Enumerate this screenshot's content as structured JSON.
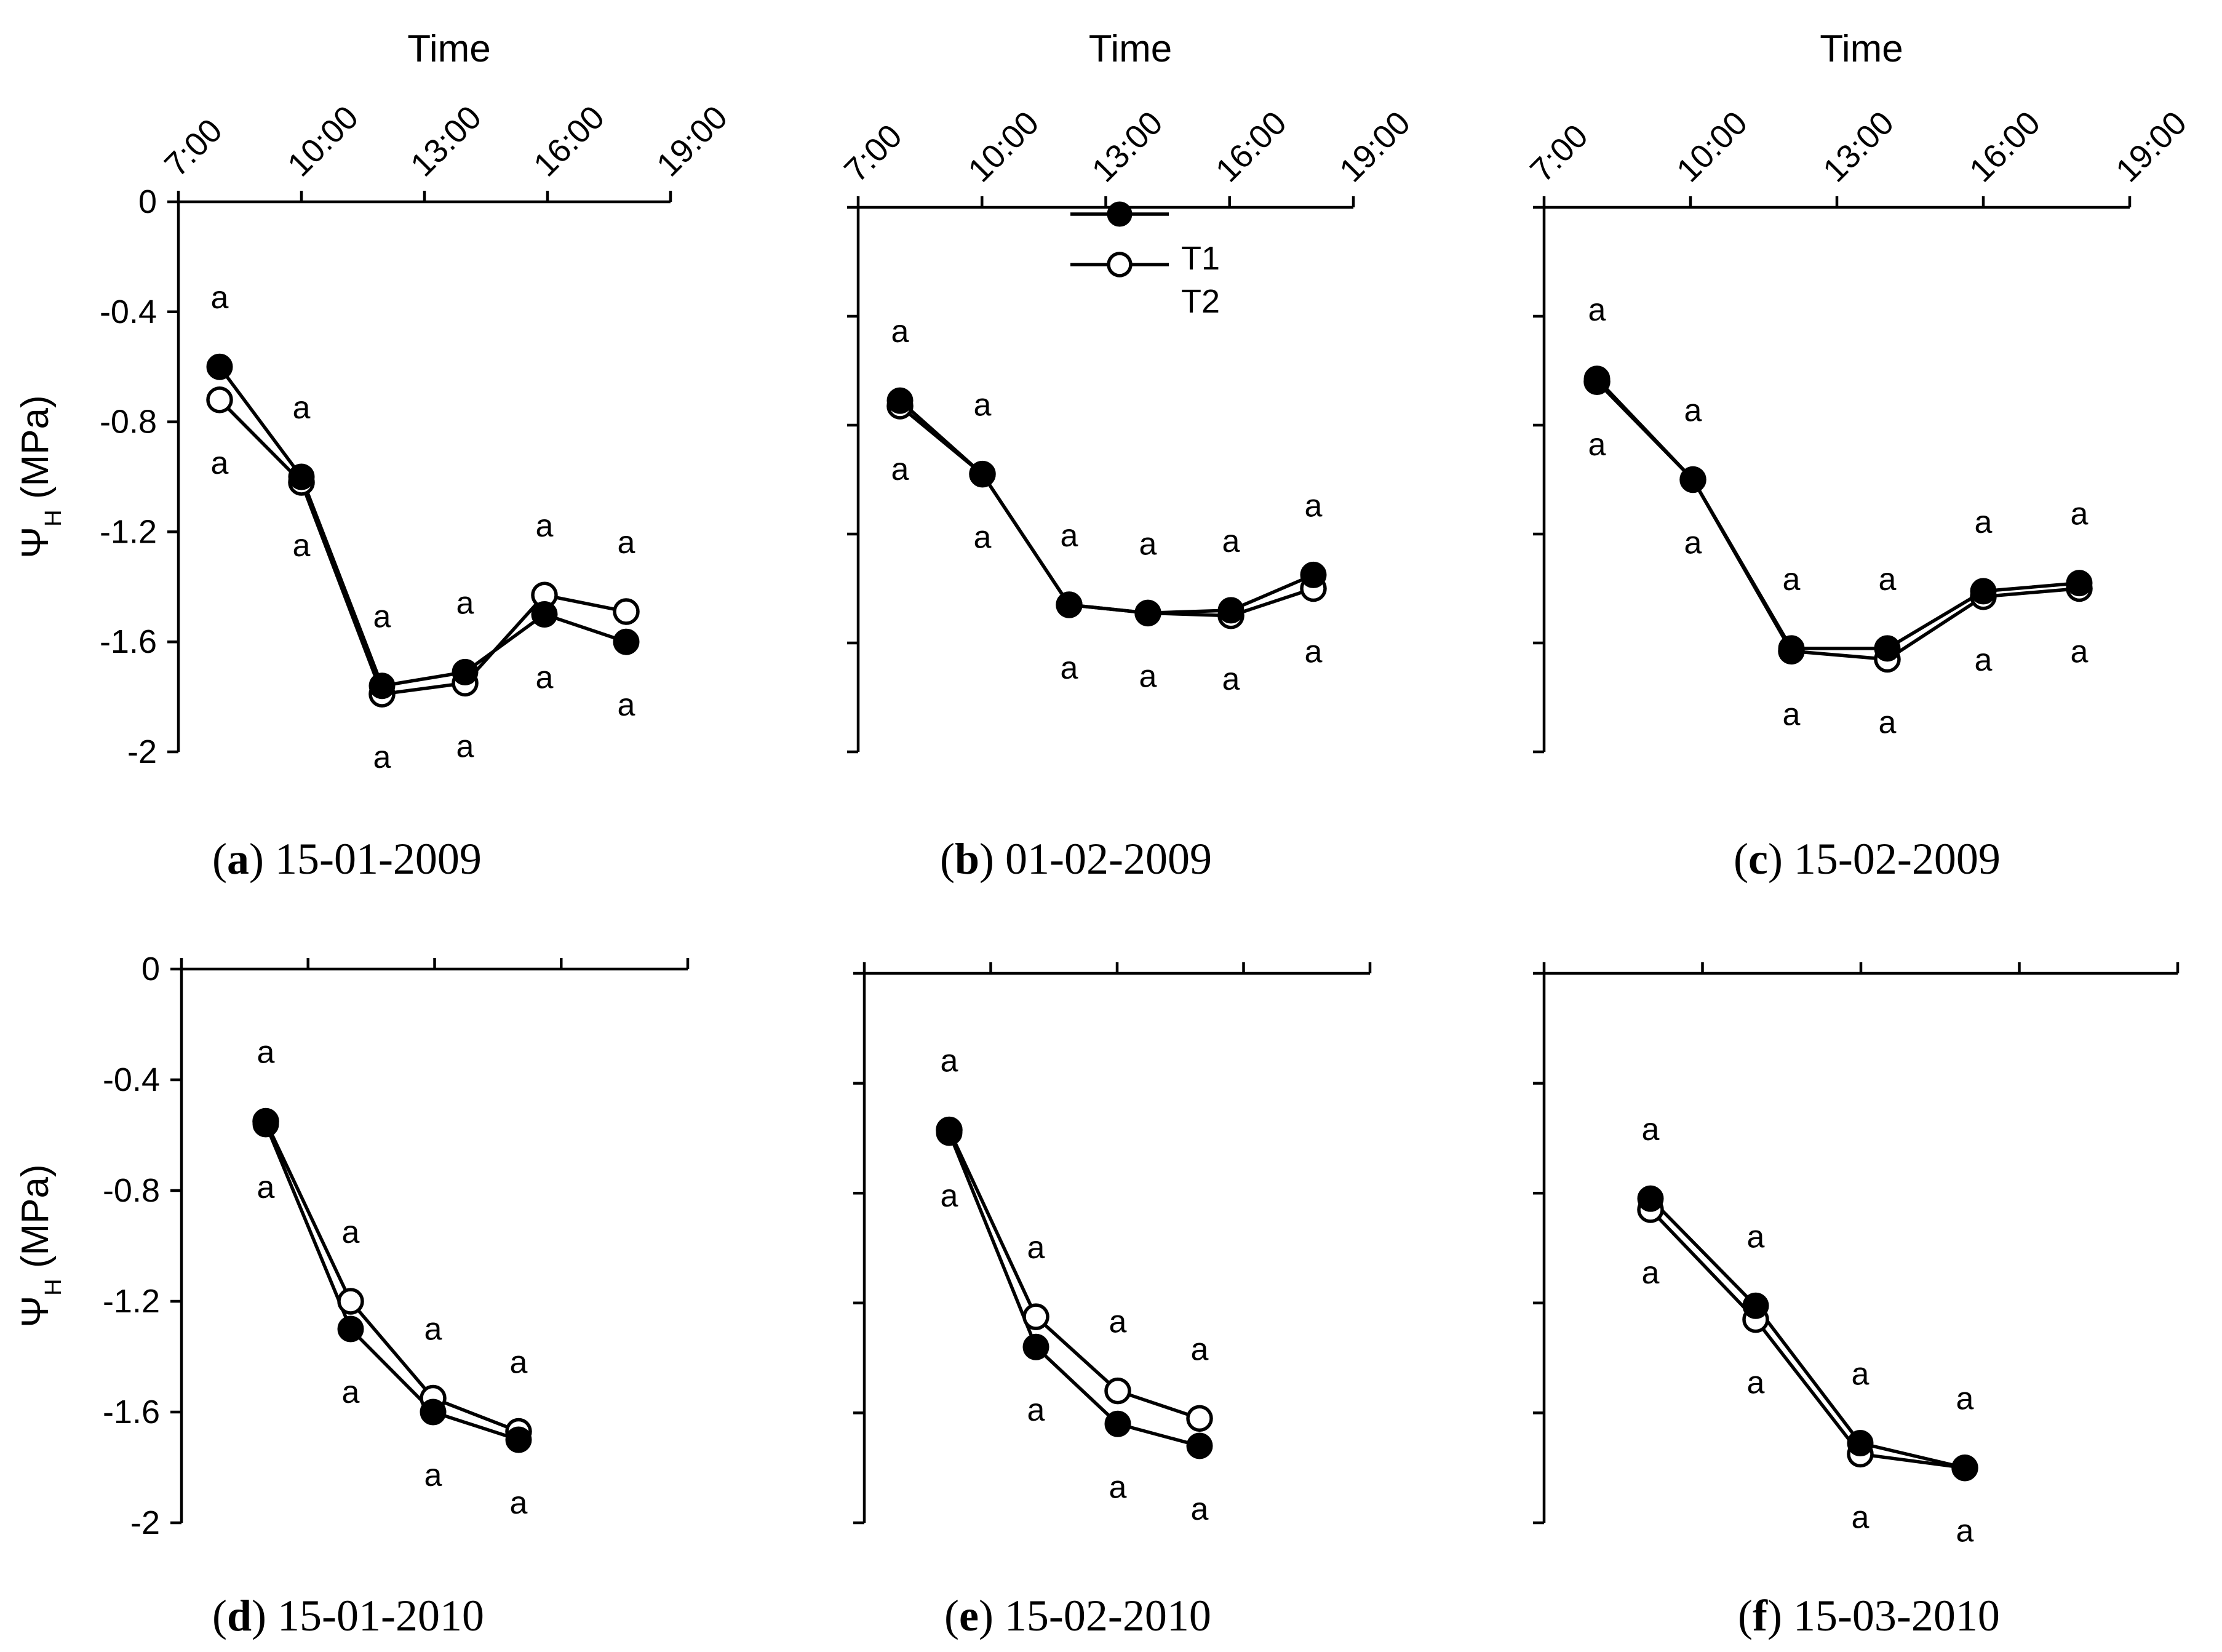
{
  "chart_data": [
    {
      "type": "line",
      "panel": "a",
      "caption": {
        "letter": "a",
        "date": "15-01-2009"
      },
      "xlabel": "Time",
      "ylabel": "ΨH (MPa)",
      "x_ticks": [
        "7:00",
        "10:00",
        "13:00",
        "16:00",
        "19:00"
      ],
      "y_ticks": [
        "0",
        "-0.4",
        "-0.8",
        "-1.2",
        "-1.6",
        "-2"
      ],
      "xlim": [
        7,
        19
      ],
      "ylim": [
        -2,
        0
      ],
      "x": [
        8.0,
        10.0,
        12.0,
        14.0,
        16.0,
        18.0
      ],
      "series": [
        {
          "name": "T1",
          "marker": "filled",
          "values": [
            -0.6,
            -1.0,
            -1.76,
            -1.71,
            -1.5,
            -1.6
          ],
          "labels": [
            "a",
            "a",
            "a",
            "a",
            "a",
            "a"
          ]
        },
        {
          "name": "T2",
          "marker": "open",
          "values": [
            -0.72,
            -1.02,
            -1.79,
            -1.75,
            -1.43,
            -1.49
          ],
          "labels": [
            "a",
            "a",
            "a",
            "a",
            "a",
            "a"
          ]
        }
      ]
    },
    {
      "type": "line",
      "panel": "b",
      "caption": {
        "letter": "b",
        "date": "01-02-2009"
      },
      "xlabel": "Time",
      "x_ticks": [
        "7:00",
        "10:00",
        "13:00",
        "16:00",
        "19:00"
      ],
      "xlim": [
        7,
        19
      ],
      "ylim": [
        -2,
        0
      ],
      "x": [
        8.0,
        10.0,
        12.0,
        14.0,
        16.0,
        18.0
      ],
      "legend": {
        "entries": [
          "T1",
          "T2"
        ],
        "position": "top"
      },
      "series": [
        {
          "name": "T1",
          "marker": "filled",
          "values": [
            -0.71,
            -0.98,
            -1.46,
            -1.49,
            -1.48,
            -1.35
          ],
          "labels": [
            "a",
            "a",
            "a",
            "a",
            "a",
            "a"
          ]
        },
        {
          "name": "T2",
          "marker": "open",
          "values": [
            -0.73,
            -0.98,
            -1.46,
            -1.49,
            -1.5,
            -1.4
          ],
          "labels": [
            "a",
            "a",
            "a",
            "a",
            "a",
            "a"
          ]
        }
      ]
    },
    {
      "type": "line",
      "panel": "c",
      "caption": {
        "letter": "c",
        "date": "15-02-2009"
      },
      "xlabel": "Time",
      "x_ticks": [
        "7:00",
        "10:00",
        "13:00",
        "16:00",
        "19:00"
      ],
      "xlim": [
        7,
        19
      ],
      "ylim": [
        -2,
        0
      ],
      "x": [
        8.0,
        10.0,
        12.0,
        14.0,
        16.0,
        18.0
      ],
      "series": [
        {
          "name": "T1",
          "marker": "filled",
          "values": [
            -0.63,
            -1.0,
            -1.62,
            -1.62,
            -1.41,
            -1.38
          ],
          "labels": [
            "a",
            "a",
            "a",
            "a",
            "a",
            "a"
          ]
        },
        {
          "name": "T2",
          "marker": "open",
          "values": [
            -0.64,
            -1.0,
            -1.63,
            -1.66,
            -1.43,
            -1.4
          ],
          "labels": [
            "a",
            "a",
            "a",
            "a",
            "a",
            "a"
          ]
        }
      ]
    },
    {
      "type": "line",
      "panel": "d",
      "caption": {
        "letter": "d",
        "date": "15-01-2010"
      },
      "ylabel": "ΨH (MPa)",
      "y_ticks": [
        "0",
        "-0.4",
        "-0.8",
        "-1.2",
        "-1.6",
        "-2"
      ],
      "xlim": [
        7,
        19
      ],
      "ylim": [
        -2,
        0
      ],
      "x": [
        8.0,
        10.0,
        12.0,
        14.0
      ],
      "series": [
        {
          "name": "T1",
          "marker": "filled",
          "values": [
            -0.56,
            -1.3,
            -1.6,
            -1.7
          ],
          "labels": [
            "a",
            "a",
            "a",
            "a"
          ]
        },
        {
          "name": "T2",
          "marker": "open",
          "values": [
            -0.55,
            -1.2,
            -1.55,
            -1.67
          ],
          "labels": [
            "a",
            "a",
            "a",
            "a"
          ]
        }
      ]
    },
    {
      "type": "line",
      "panel": "e",
      "caption": {
        "letter": "e",
        "date": "15-02-2010"
      },
      "xlim": [
        7,
        19
      ],
      "ylim": [
        -2,
        0
      ],
      "x": [
        8.0,
        10.0,
        12.0,
        14.0
      ],
      "series": [
        {
          "name": "T1",
          "marker": "filled",
          "values": [
            -0.58,
            -1.36,
            -1.64,
            -1.72
          ],
          "labels": [
            "a",
            "a",
            "a",
            "a"
          ]
        },
        {
          "name": "T2",
          "marker": "open",
          "values": [
            -0.57,
            -1.25,
            -1.52,
            -1.62
          ],
          "labels": [
            "a",
            "a",
            "a",
            "a"
          ]
        }
      ]
    },
    {
      "type": "line",
      "panel": "f",
      "caption": {
        "letter": "f",
        "date": "15-03-2010"
      },
      "xlim": [
        7,
        19
      ],
      "ylim": [
        -2,
        0
      ],
      "x": [
        8.0,
        10.0,
        12.0,
        14.0
      ],
      "series": [
        {
          "name": "T1",
          "marker": "filled",
          "values": [
            -0.82,
            -1.21,
            -1.71,
            -1.8
          ],
          "labels": [
            "a",
            "a",
            "a",
            "a"
          ]
        },
        {
          "name": "T2",
          "marker": "open",
          "values": [
            -0.86,
            -1.26,
            -1.75,
            -1.8
          ],
          "labels": [
            "a",
            "a",
            "a",
            "a"
          ]
        }
      ]
    }
  ]
}
